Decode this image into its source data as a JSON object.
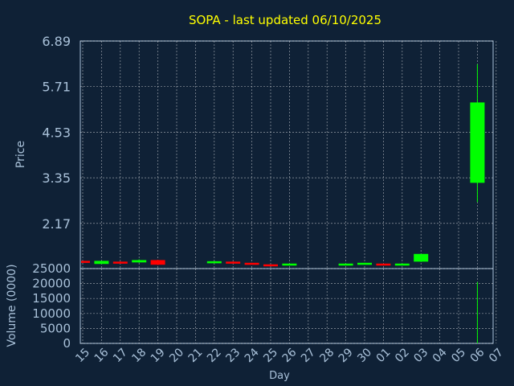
{
  "chart_data": [
    {
      "type": "candlestick",
      "title": "SOPA - last updated 06/10/2025",
      "xlabel": "",
      "ylabel": "Price",
      "ylim": [
        1.0,
        6.89
      ],
      "yticks": [
        "6.89",
        "5.71",
        "4.53",
        "3.35",
        "2.17"
      ],
      "grid": true,
      "colors": {
        "up": "#00ff00",
        "down": "#ff0000",
        "title": "#ffff00",
        "axis": "#a9c1d9",
        "grid": "#ffffff",
        "background": "#0f2136"
      },
      "categories": [
        "15",
        "16",
        "17",
        "18",
        "19",
        "20",
        "21",
        "22",
        "23",
        "24",
        "25",
        "26",
        "27",
        "28",
        "29",
        "30",
        "01",
        "02",
        "03",
        "04",
        "05",
        "06",
        "07"
      ],
      "candles": [
        {
          "day": "15",
          "open": 1.2,
          "close": 1.18,
          "high": 1.2,
          "low": 1.18
        },
        {
          "day": "16",
          "open": 1.12,
          "close": 1.2,
          "high": 1.2,
          "low": 1.12
        },
        {
          "day": "17",
          "open": 1.18,
          "close": 1.14,
          "high": 1.19,
          "low": 1.13
        },
        {
          "day": "18",
          "open": 1.16,
          "close": 1.22,
          "high": 1.24,
          "low": 1.15
        },
        {
          "day": "19",
          "open": 1.22,
          "close": 1.1,
          "high": 1.23,
          "low": 1.09
        },
        {
          "day": "22",
          "open": 1.15,
          "close": 1.19,
          "high": 1.19,
          "low": 1.14
        },
        {
          "day": "23",
          "open": 1.18,
          "close": 1.15,
          "high": 1.19,
          "low": 1.14
        },
        {
          "day": "24",
          "open": 1.15,
          "close": 1.13,
          "high": 1.15,
          "low": 1.12
        },
        {
          "day": "25",
          "open": 1.11,
          "close": 1.09,
          "high": 1.11,
          "low": 1.08
        },
        {
          "day": "26",
          "open": 1.08,
          "close": 1.13,
          "high": 1.13,
          "low": 1.08
        },
        {
          "day": "29",
          "open": 1.1,
          "close": 1.13,
          "high": 1.13,
          "low": 1.09
        },
        {
          "day": "30",
          "open": 1.13,
          "close": 1.15,
          "high": 1.15,
          "low": 1.12
        },
        {
          "day": "01",
          "open": 1.13,
          "close": 1.11,
          "high": 1.13,
          "low": 1.1
        },
        {
          "day": "02",
          "open": 1.1,
          "close": 1.13,
          "high": 1.13,
          "low": 1.09
        },
        {
          "day": "03",
          "open": 1.18,
          "close": 1.38,
          "high": 1.38,
          "low": 1.17
        },
        {
          "day": "06",
          "open": 3.22,
          "close": 5.3,
          "high": 6.29,
          "low": 2.72
        }
      ]
    },
    {
      "type": "bar",
      "xlabel": "Day",
      "ylabel": "Volume (0000)",
      "ylim": [
        0,
        25000
      ],
      "yticks": [
        "25000",
        "20000",
        "15000",
        "10000",
        "5000",
        "0"
      ],
      "grid": true,
      "categories": [
        "15",
        "16",
        "17",
        "18",
        "19",
        "20",
        "21",
        "22",
        "23",
        "24",
        "25",
        "26",
        "27",
        "28",
        "29",
        "30",
        "01",
        "02",
        "03",
        "04",
        "05",
        "06",
        "07"
      ],
      "volumes": [
        {
          "day": "06",
          "value": 20500
        }
      ]
    }
  ]
}
